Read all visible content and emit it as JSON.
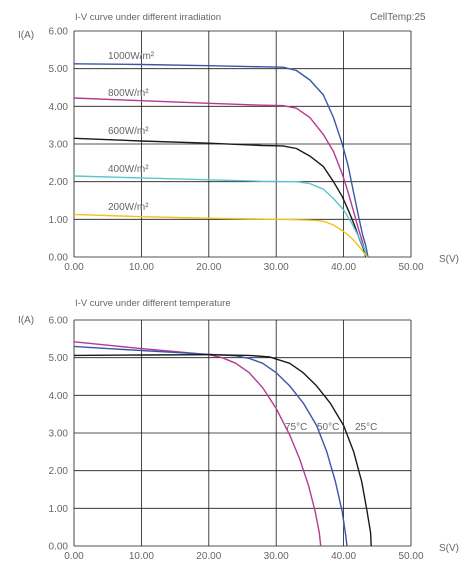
{
  "chart_data": [
    {
      "type": "line",
      "title": "I-V curve under different irradiation",
      "subtitle": "CellTemp:25",
      "xlabel": "S(V)",
      "ylabel": "I(A)",
      "xlim": [
        0,
        50
      ],
      "ylim": [
        0,
        6
      ],
      "xticks": [
        "0.00",
        "10.00",
        "20.00",
        "30.00",
        "40.00",
        "50.00"
      ],
      "yticks": [
        "0.00",
        "1.00",
        "2.00",
        "3.00",
        "4.00",
        "5.00",
        "6.00"
      ],
      "grid": true,
      "series": [
        {
          "name": "1000W/m²",
          "color": "#3a55a8",
          "points": [
            [
              0,
              5.13
            ],
            [
              10,
              5.11
            ],
            [
              20,
              5.08
            ],
            [
              28,
              5.05
            ],
            [
              31,
              5.04
            ],
            [
              33,
              4.95
            ],
            [
              35,
              4.7
            ],
            [
              37,
              4.3
            ],
            [
              38.5,
              3.7
            ],
            [
              39.8,
              3.0
            ],
            [
              40.7,
              2.4
            ],
            [
              41.5,
              1.7
            ],
            [
              42.2,
              1.1
            ],
            [
              42.8,
              0.6
            ],
            [
              43.3,
              0.3
            ],
            [
              43.6,
              0.0
            ]
          ]
        },
        {
          "name": "800W/m²",
          "color": "#b53a91",
          "points": [
            [
              0,
              4.22
            ],
            [
              10,
              4.15
            ],
            [
              20,
              4.08
            ],
            [
              28,
              4.03
            ],
            [
              31,
              4.02
            ],
            [
              33,
              3.95
            ],
            [
              35,
              3.7
            ],
            [
              37,
              3.25
            ],
            [
              38.5,
              2.8
            ],
            [
              39.8,
              2.2
            ],
            [
              40.7,
              1.7
            ],
            [
              41.5,
              1.2
            ],
            [
              42.2,
              0.75
            ],
            [
              42.8,
              0.4
            ],
            [
              43.4,
              0.0
            ]
          ]
        },
        {
          "name": "600W/m²",
          "color": "#1a1a1a",
          "points": [
            [
              0,
              3.15
            ],
            [
              10,
              3.08
            ],
            [
              20,
              3.02
            ],
            [
              28,
              2.96
            ],
            [
              31,
              2.95
            ],
            [
              33,
              2.88
            ],
            [
              35,
              2.68
            ],
            [
              37,
              2.4
            ],
            [
              38.5,
              2.0
            ],
            [
              39.8,
              1.6
            ],
            [
              40.8,
              1.2
            ],
            [
              41.6,
              0.85
            ],
            [
              42.3,
              0.5
            ],
            [
              42.9,
              0.25
            ],
            [
              43.3,
              0.0
            ]
          ]
        },
        {
          "name": "400W/m²",
          "color": "#5bc6cf",
          "points": [
            [
              0,
              2.15
            ],
            [
              10,
              2.1
            ],
            [
              20,
              2.05
            ],
            [
              28,
              2.01
            ],
            [
              33,
              2.0
            ],
            [
              35,
              1.95
            ],
            [
              37,
              1.8
            ],
            [
              38.5,
              1.55
            ],
            [
              40,
              1.25
            ],
            [
              41.2,
              0.9
            ],
            [
              42.2,
              0.55
            ],
            [
              43,
              0.25
            ],
            [
              43.5,
              0.0
            ]
          ]
        },
        {
          "name": "200W/m²",
          "color": "#f0c419",
          "points": [
            [
              0,
              1.13
            ],
            [
              10,
              1.07
            ],
            [
              20,
              1.03
            ],
            [
              30,
              1.0
            ],
            [
              35,
              0.98
            ],
            [
              37,
              0.95
            ],
            [
              38.5,
              0.85
            ],
            [
              40,
              0.68
            ],
            [
              41.2,
              0.5
            ],
            [
              42.2,
              0.3
            ],
            [
              43,
              0.12
            ],
            [
              43.5,
              0.0
            ]
          ]
        }
      ]
    },
    {
      "type": "line",
      "title": "I-V curve under different temperature",
      "xlabel": "S(V)",
      "ylabel": "I(A)",
      "xlim": [
        0,
        50
      ],
      "ylim": [
        0,
        6
      ],
      "xticks": [
        "0.00",
        "10.00",
        "20.00",
        "30.00",
        "40.00",
        "50.00"
      ],
      "yticks": [
        "0.00",
        "1.00",
        "2.00",
        "3.00",
        "4.00",
        "5.00",
        "6.00"
      ],
      "grid": true,
      "series": [
        {
          "name": "75°C",
          "color": "#b53a91",
          "points": [
            [
              0,
              5.42
            ],
            [
              5,
              5.33
            ],
            [
              10,
              5.24
            ],
            [
              15,
              5.16
            ],
            [
              20,
              5.08
            ],
            [
              22,
              5.0
            ],
            [
              24,
              4.85
            ],
            [
              26,
              4.6
            ],
            [
              28,
              4.2
            ],
            [
              30,
              3.65
            ],
            [
              32,
              2.95
            ],
            [
              33.5,
              2.3
            ],
            [
              34.8,
              1.6
            ],
            [
              35.8,
              0.9
            ],
            [
              36.4,
              0.35
            ],
            [
              36.6,
              0.0
            ]
          ]
        },
        {
          "name": "50°C",
          "color": "#3a55a8",
          "points": [
            [
              0,
              5.3
            ],
            [
              5,
              5.24
            ],
            [
              10,
              5.19
            ],
            [
              15,
              5.14
            ],
            [
              20,
              5.09
            ],
            [
              24,
              5.05
            ],
            [
              26,
              4.98
            ],
            [
              28,
              4.85
            ],
            [
              30,
              4.6
            ],
            [
              32,
              4.25
            ],
            [
              34,
              3.8
            ],
            [
              36,
              3.2
            ],
            [
              37.5,
              2.5
            ],
            [
              38.8,
              1.7
            ],
            [
              39.8,
              0.9
            ],
            [
              40.3,
              0.3
            ],
            [
              40.5,
              0.0
            ]
          ]
        },
        {
          "name": "25°C",
          "color": "#1a1a1a",
          "points": [
            [
              0,
              5.06
            ],
            [
              10,
              5.07
            ],
            [
              20,
              5.08
            ],
            [
              26,
              5.06
            ],
            [
              29,
              5.02
            ],
            [
              32,
              4.85
            ],
            [
              34,
              4.6
            ],
            [
              36,
              4.25
            ],
            [
              38,
              3.8
            ],
            [
              40,
              3.2
            ],
            [
              41.5,
              2.5
            ],
            [
              42.7,
              1.7
            ],
            [
              43.5,
              0.9
            ],
            [
              44,
              0.35
            ],
            [
              44.1,
              0.0
            ]
          ]
        }
      ]
    }
  ]
}
